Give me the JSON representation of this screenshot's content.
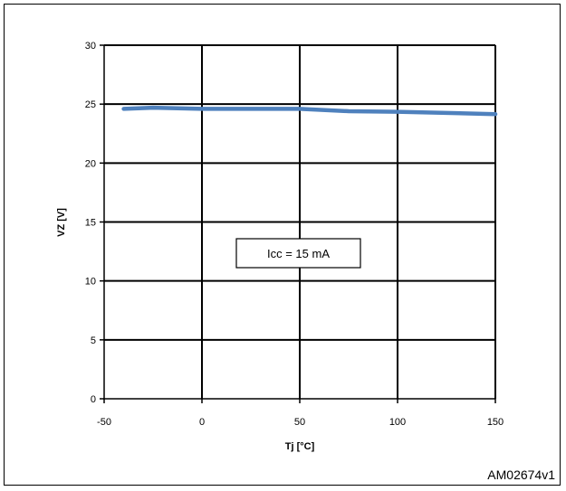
{
  "chart_data": {
    "type": "line",
    "xlabel": "Tj [°C]",
    "ylabel": "VZ [V]",
    "xlim": [
      -50,
      150
    ],
    "ylim": [
      0,
      30
    ],
    "x_ticks": [
      -50,
      0,
      50,
      100,
      150
    ],
    "y_ticks": [
      0,
      5,
      10,
      15,
      20,
      25,
      30
    ],
    "grid": true,
    "series": [
      {
        "x": [
          -40,
          -25,
          0,
          25,
          50,
          75,
          100,
          125,
          150
        ],
        "y": [
          24.6,
          24.7,
          24.6,
          24.6,
          24.6,
          24.4,
          24.35,
          24.25,
          24.15
        ]
      }
    ],
    "annotation": "Icc = 15 mA",
    "figure_id": "AM02674v1",
    "line_color": "#4f81bd"
  }
}
